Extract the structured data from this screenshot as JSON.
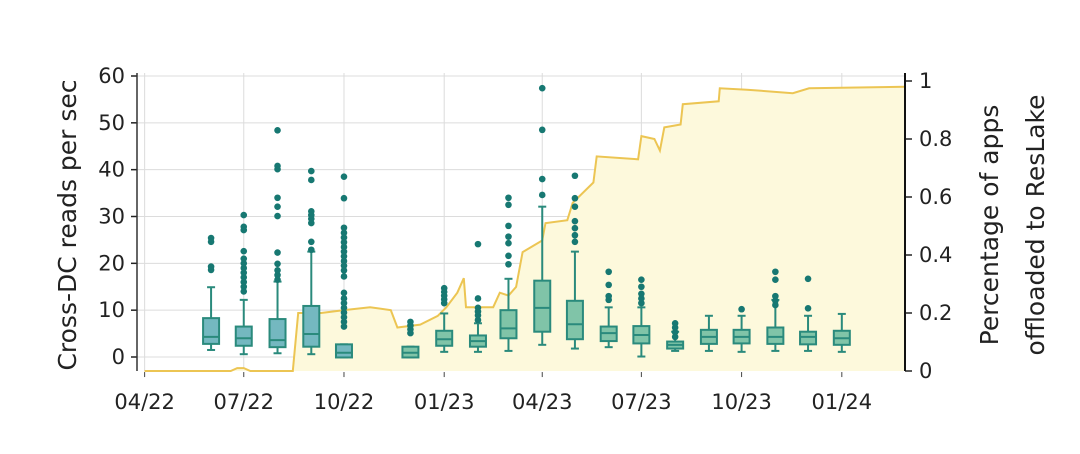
{
  "chart_data": {
    "type": "box+area",
    "xlabel": "",
    "ylabel": "Cross-DC reads per sec",
    "y2label_lines": [
      "Percentage of apps",
      "offloaded to ResLake"
    ],
    "xlim": [
      "2022-03-25",
      "2024-02-28"
    ],
    "ylim": [
      -3,
      60
    ],
    "y2lim": [
      0,
      1
    ],
    "grid": true,
    "x_ticks": [
      {
        "date": "2022-04-01",
        "label": "04/22"
      },
      {
        "date": "2022-07-01",
        "label": "07/22"
      },
      {
        "date": "2022-10-01",
        "label": "10/22"
      },
      {
        "date": "2023-01-01",
        "label": "01/23"
      },
      {
        "date": "2023-04-01",
        "label": "04/23"
      },
      {
        "date": "2023-07-01",
        "label": "07/23"
      },
      {
        "date": "2023-10-01",
        "label": "10/23"
      },
      {
        "date": "2024-01-01",
        "label": "01/24"
      }
    ],
    "y_ticks": [
      {
        "v": 0,
        "label": "0"
      },
      {
        "v": 10,
        "label": "10"
      },
      {
        "v": 20,
        "label": "20"
      },
      {
        "v": 30,
        "label": "30"
      },
      {
        "v": 40,
        "label": "40"
      },
      {
        "v": 50,
        "label": "50"
      },
      {
        "v": 60,
        "label": "60"
      }
    ],
    "y2_ticks": [
      {
        "v": 0,
        "label": "0"
      },
      {
        "v": 0.2,
        "label": "0.2"
      },
      {
        "v": 0.4,
        "label": "0.4"
      },
      {
        "v": 0.6,
        "label": "0.6"
      },
      {
        "v": 0.8,
        "label": "0.8"
      },
      {
        "v": 1,
        "label": "1"
      }
    ],
    "colors": {
      "box_fill_early": "#74b8c0",
      "box_fill_late": "#80c4a8",
      "box_stroke": "#2a8a7c",
      "outlier": "#177872",
      "line": "#ecc553",
      "area": "#fdf9dc",
      "grid": "#dcdcdc"
    },
    "boxes": [
      {
        "date": "2022-06-01",
        "whislo": 1.5,
        "q1": 2.8,
        "med": 4.3,
        "q3": 8.3,
        "whishi": 14.9,
        "fliers": [
          18.6,
          19.3,
          24.6,
          25.4
        ]
      },
      {
        "date": "2022-07-01",
        "whislo": 0.6,
        "q1": 2.4,
        "med": 4.0,
        "q3": 6.5,
        "whishi": 12.2,
        "fliers": [
          14,
          15,
          16,
          17,
          18,
          19,
          20,
          21,
          22.6,
          27.1,
          27.8,
          30.3
        ]
      },
      {
        "date": "2022-08-01",
        "whislo": 0.8,
        "q1": 2.1,
        "med": 3.6,
        "q3": 8.1,
        "whishi": 16.1,
        "fliers": [
          16.5,
          17.5,
          18.5,
          19.9,
          22.3,
          30.1,
          32.1,
          34.0,
          40.1,
          40.8,
          48.4
        ]
      },
      {
        "date": "2022-09-01",
        "whislo": 0.6,
        "q1": 2.2,
        "med": 4.9,
        "q3": 10.9,
        "whishi": 22.5,
        "fliers": [
          22.9,
          24.6,
          28.6,
          29.5,
          30.3,
          31.1,
          37.8,
          39.7
        ]
      },
      {
        "date": "2022-10-01",
        "whislo": -0.1,
        "q1": -0.1,
        "med": 0.9,
        "q3": 2.7,
        "whishi": 2.7,
        "fliers": [
          6.5,
          7.5,
          8.5,
          9.5,
          10.5,
          11.5,
          12.5,
          13.7,
          17.2,
          18.5,
          19.5,
          20.5,
          21.5,
          22.5,
          23.5,
          24.5,
          25.5,
          26.5,
          27.6,
          33.9,
          38.5
        ]
      },
      {
        "date": "2022-12-01",
        "whislo": -0.1,
        "q1": -0.1,
        "med": 0.9,
        "q3": 2.2,
        "whishi": 2.2,
        "fliers": [
          5.1,
          5.9,
          6.7,
          7.5
        ]
      },
      {
        "date": "2023-01-01",
        "whislo": 1.1,
        "q1": 2.4,
        "med": 3.8,
        "q3": 5.6,
        "whishi": 9.3,
        "fliers": [
          11.5,
          12.3,
          13.1,
          13.9,
          14.7
        ]
      },
      {
        "date": "2023-02-01",
        "whislo": 1.1,
        "q1": 2.2,
        "med": 3.4,
        "q3": 4.6,
        "whishi": 7.2,
        "fliers": [
          7.9,
          8.9,
          9.7,
          10.5,
          12.5,
          24.1
        ]
      },
      {
        "date": "2023-03-01",
        "whislo": 1.3,
        "q1": 4.0,
        "med": 6.1,
        "q3": 10.0,
        "whishi": 16.7,
        "fliers": [
          19.8,
          21.6,
          24.3,
          25.7,
          28.0,
          32.5,
          34.0
        ]
      },
      {
        "date": "2023-04-01",
        "whislo": 2.6,
        "q1": 5.4,
        "med": 10.5,
        "q3": 16.3,
        "whishi": 32.1,
        "fliers": [
          34.6,
          38.0,
          48.5,
          57.4
        ]
      },
      {
        "date": "2023-05-01",
        "whislo": 1.8,
        "q1": 3.8,
        "med": 7.0,
        "q3": 12.0,
        "whishi": 22.5,
        "fliers": [
          24.6,
          26.0,
          27.5,
          29.0,
          32.1,
          33.9,
          38.7
        ]
      },
      {
        "date": "2023-06-01",
        "whislo": 2.1,
        "q1": 3.4,
        "med": 5.1,
        "q3": 6.5,
        "whishi": 10.6,
        "fliers": [
          12.2,
          13.0,
          15.4,
          18.2
        ]
      },
      {
        "date": "2023-07-01",
        "whislo": 0.1,
        "q1": 2.9,
        "med": 4.7,
        "q3": 6.6,
        "whishi": 10.6,
        "fliers": [
          11.5,
          12.5,
          13.5,
          15.0,
          16.5
        ]
      },
      {
        "date": "2023-08-01",
        "whislo": 1.3,
        "q1": 1.8,
        "med": 2.6,
        "q3": 3.3,
        "whishi": 5.4,
        "fliers": [
          4.3,
          5.3,
          6.3,
          7.2
        ]
      },
      {
        "date": "2023-09-01",
        "whislo": 1.3,
        "q1": 2.8,
        "med": 4.3,
        "q3": 5.8,
        "whishi": 8.8,
        "fliers": []
      },
      {
        "date": "2023-10-01",
        "whislo": 1.1,
        "q1": 2.9,
        "med": 4.3,
        "q3": 5.8,
        "whishi": 8.8,
        "fliers": [
          10.2
        ]
      },
      {
        "date": "2023-11-01",
        "whislo": 1.3,
        "q1": 2.8,
        "med": 4.3,
        "q3": 6.3,
        "whishi": 12.2,
        "fliers": [
          11.1,
          12.0,
          13.0,
          16.5,
          18.2
        ]
      },
      {
        "date": "2023-12-01",
        "whislo": 1.3,
        "q1": 2.7,
        "med": 4.3,
        "q3": 5.4,
        "whishi": 8.8,
        "fliers": [
          10.4,
          16.7
        ]
      },
      {
        "date": "2024-01-01",
        "whislo": 1.1,
        "q1": 2.6,
        "med": 4.0,
        "q3": 5.6,
        "whishi": 9.2,
        "fliers": []
      }
    ],
    "offload_series": [
      [
        "2022-04-01",
        0
      ],
      [
        "2022-06-19",
        0
      ],
      [
        "2022-06-25",
        0.01
      ],
      [
        "2022-07-01",
        0.01
      ],
      [
        "2022-07-07",
        0
      ],
      [
        "2022-08-15",
        0
      ],
      [
        "2022-08-20",
        0.2
      ],
      [
        "2022-09-10",
        0.2
      ],
      [
        "2022-10-01",
        0.21
      ],
      [
        "2022-10-25",
        0.22
      ],
      [
        "2022-11-13",
        0.21
      ],
      [
        "2022-11-19",
        0.15
      ],
      [
        "2022-12-10",
        0.16
      ],
      [
        "2022-12-26",
        0.19
      ],
      [
        "2023-01-03",
        0.22
      ],
      [
        "2023-01-13",
        0.27
      ],
      [
        "2023-01-19",
        0.32
      ],
      [
        "2023-01-21",
        0.22
      ],
      [
        "2023-02-15",
        0.22
      ],
      [
        "2023-02-21",
        0.27
      ],
      [
        "2023-03-01",
        0.26
      ],
      [
        "2023-03-08",
        0.29
      ],
      [
        "2023-03-14",
        0.41
      ],
      [
        "2023-04-01",
        0.45
      ],
      [
        "2023-04-04",
        0.51
      ],
      [
        "2023-04-24",
        0.52
      ],
      [
        "2023-04-29",
        0.58
      ],
      [
        "2023-05-18",
        0.65
      ],
      [
        "2023-05-21",
        0.74
      ],
      [
        "2023-06-28",
        0.73
      ],
      [
        "2023-07-01",
        0.81
      ],
      [
        "2023-07-13",
        0.8
      ],
      [
        "2023-07-18",
        0.76
      ],
      [
        "2023-07-22",
        0.84
      ],
      [
        "2023-08-06",
        0.85
      ],
      [
        "2023-08-08",
        0.92
      ],
      [
        "2023-09-10",
        0.93
      ],
      [
        "2023-09-11",
        0.975
      ],
      [
        "2023-10-06",
        0.97
      ],
      [
        "2023-11-17",
        0.958
      ],
      [
        "2023-12-02",
        0.975
      ],
      [
        "2024-02-28",
        0.98
      ]
    ]
  }
}
